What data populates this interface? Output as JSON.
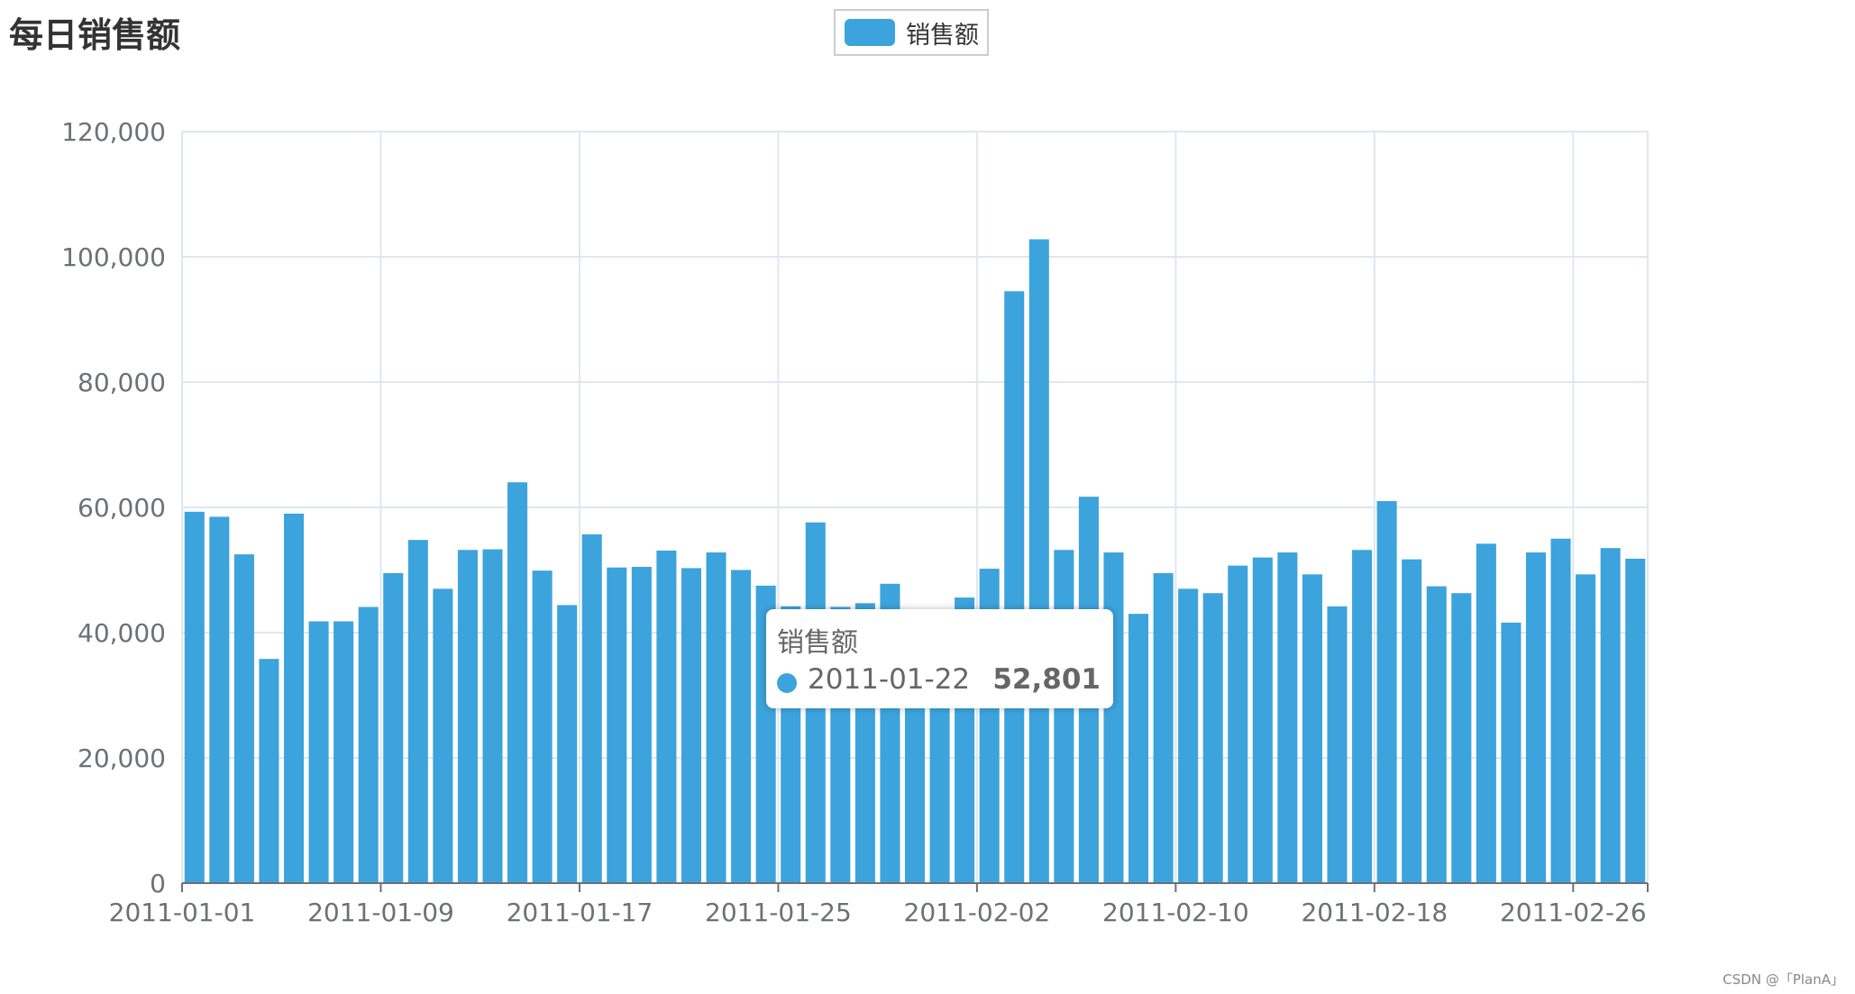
{
  "title": "每日销售额",
  "legend": {
    "label": "销售额",
    "color": "#3ca3dc"
  },
  "tooltip": {
    "series": "销售额",
    "date": "2011-01-22",
    "value": "52,801"
  },
  "watermark": "CSDN @「PlanA」",
  "colors": {
    "bar": "#3ca3dc",
    "grid": "#e0e6f1",
    "axis": "#6e7079",
    "text": "#6e7079"
  },
  "chart_data": {
    "type": "bar",
    "title": "每日销售额",
    "xlabel": "",
    "ylabel": "",
    "ylim": [
      0,
      120000
    ],
    "yticks": [
      0,
      20000,
      40000,
      60000,
      80000,
      100000,
      120000
    ],
    "ytick_labels": [
      "0",
      "20,000",
      "40,000",
      "60,000",
      "80,000",
      "100,000",
      "120,000"
    ],
    "xtick_labels": [
      "2011-01-01",
      "2011-01-09",
      "2011-01-17",
      "2011-01-25",
      "2011-02-02",
      "2011-02-10",
      "2011-02-18",
      "2011-02-26"
    ],
    "grid": true,
    "legend_position": "top-center",
    "categories": [
      "2011-01-01",
      "2011-01-02",
      "2011-01-03",
      "2011-01-04",
      "2011-01-05",
      "2011-01-06",
      "2011-01-07",
      "2011-01-08",
      "2011-01-09",
      "2011-01-10",
      "2011-01-11",
      "2011-01-12",
      "2011-01-13",
      "2011-01-14",
      "2011-01-15",
      "2011-01-16",
      "2011-01-17",
      "2011-01-18",
      "2011-01-19",
      "2011-01-20",
      "2011-01-21",
      "2011-01-22",
      "2011-01-23",
      "2011-01-24",
      "2011-01-25",
      "2011-01-26",
      "2011-01-27",
      "2011-01-28",
      "2011-01-29",
      "2011-01-30",
      "2011-01-31",
      "2011-02-01",
      "2011-02-02",
      "2011-02-03",
      "2011-02-04",
      "2011-02-05",
      "2011-02-06",
      "2011-02-07",
      "2011-02-08",
      "2011-02-09",
      "2011-02-10",
      "2011-02-11",
      "2011-02-12",
      "2011-02-13",
      "2011-02-14",
      "2011-02-15",
      "2011-02-16",
      "2011-02-17",
      "2011-02-18",
      "2011-02-19",
      "2011-02-20",
      "2011-02-21",
      "2011-02-22",
      "2011-02-23",
      "2011-02-24",
      "2011-02-25",
      "2011-02-26",
      "2011-02-27",
      "2011-02-28"
    ],
    "series": [
      {
        "name": "销售额",
        "values": [
          59300,
          58500,
          52500,
          35800,
          59000,
          41800,
          41800,
          44100,
          49500,
          54800,
          47000,
          53200,
          53300,
          64000,
          49900,
          44400,
          55700,
          50400,
          50500,
          53100,
          50300,
          52801,
          50000,
          47500,
          44200,
          57600,
          44100,
          44700,
          47800,
          42000,
          43500,
          45600,
          50200,
          94500,
          102800,
          53200,
          61700,
          52800,
          43000,
          49500,
          47000,
          46300,
          50700,
          52000,
          52800,
          49300,
          44200,
          53200,
          61000,
          51700,
          47400,
          46300,
          54200,
          41600,
          52800,
          55000,
          49300,
          53500,
          51800
        ]
      }
    ]
  }
}
